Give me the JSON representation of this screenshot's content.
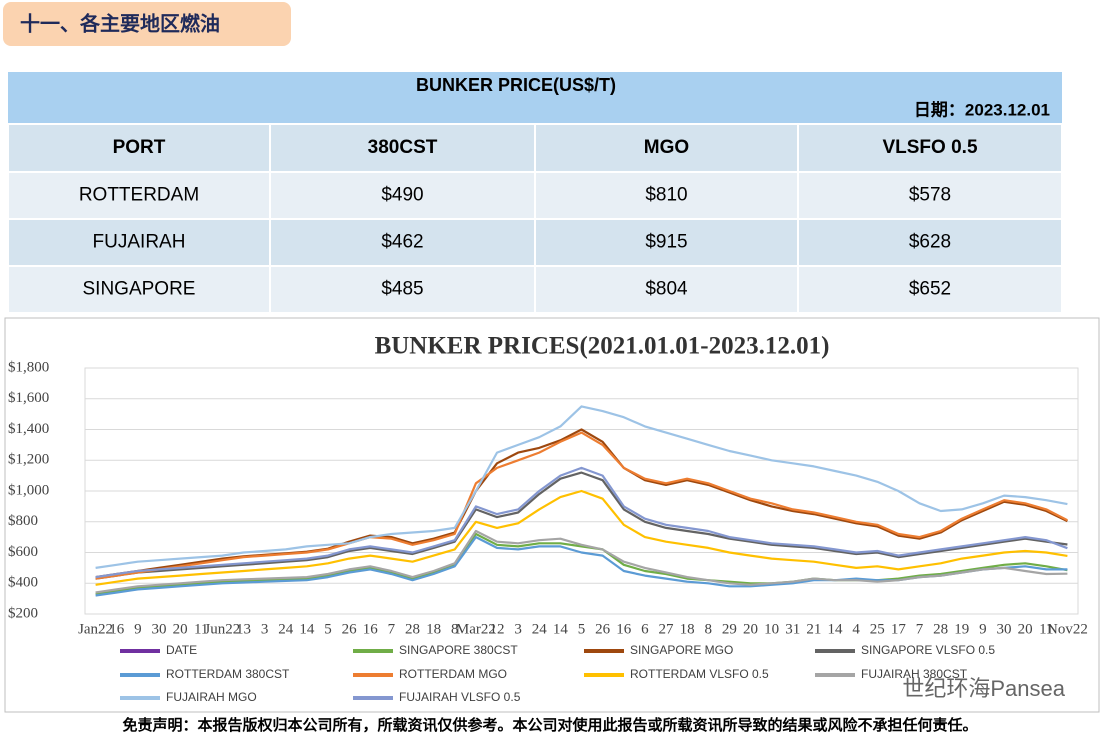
{
  "header": {
    "title": "十一、各主要地区燃油"
  },
  "table": {
    "title": "BUNKER PRICE(US$/T)",
    "date": "日期：2023.12.01",
    "columns": [
      "PORT",
      "380CST",
      "MGO",
      "VLSFO 0.5"
    ],
    "rows": [
      [
        "ROTTERDAM",
        "$490",
        "$810",
        "$578"
      ],
      [
        "FUJAIRAH",
        "$462",
        "$915",
        "$628"
      ],
      [
        "SINGAPORE",
        "$485",
        "$804",
        "$652"
      ]
    ]
  },
  "chart_data": {
    "type": "line",
    "title": "BUNKER PRICES(2021.01.01-2023.12.01)",
    "categories": [
      "Jan22",
      "16",
      "9",
      "30",
      "20",
      "11",
      "Jun22",
      "13",
      "3",
      "24",
      "14",
      "5",
      "26",
      "16",
      "7",
      "28",
      "18",
      "8",
      "Mar22",
      "12",
      "3",
      "24",
      "14",
      "5",
      "26",
      "16",
      "6",
      "27",
      "18",
      "8",
      "29",
      "20",
      "10",
      "31",
      "21",
      "14",
      "4",
      "25",
      "17",
      "7",
      "28",
      "19",
      "9",
      "30",
      "20",
      "11",
      "Nov22"
    ],
    "ylim": [
      200,
      1800
    ],
    "yticks": [
      {
        "value": 200,
        "label": "$200"
      },
      {
        "value": 400,
        "label": "$400"
      },
      {
        "value": 600,
        "label": "$600"
      },
      {
        "value": 800,
        "label": "$800"
      },
      {
        "value": 1000,
        "label": "$1,000"
      },
      {
        "value": 1200,
        "label": "$1,200"
      },
      {
        "value": 1400,
        "label": "$1,400"
      },
      {
        "value": 1600,
        "label": "$1,600"
      },
      {
        "value": 1800,
        "label": "$1,800"
      }
    ],
    "grid": true,
    "legend": "bottom",
    "series": [
      {
        "name": "DATE",
        "color": "#7030a0",
        "values": [
          null,
          null,
          null,
          null,
          null,
          null,
          null,
          null,
          null,
          null,
          null,
          null,
          null,
          null,
          null,
          null,
          null,
          null,
          null,
          null,
          null,
          null,
          null,
          null,
          null,
          null,
          null,
          null,
          null,
          null,
          null,
          null,
          null,
          null,
          null,
          null,
          null,
          null,
          null,
          null,
          null,
          null,
          null,
          null,
          null,
          null,
          null
        ]
      },
      {
        "name": "SINGAPORE 380CST",
        "color": "#70ad47",
        "values": [
          330,
          350,
          370,
          380,
          390,
          400,
          410,
          415,
          420,
          425,
          430,
          450,
          480,
          500,
          470,
          430,
          470,
          520,
          720,
          650,
          640,
          660,
          660,
          640,
          620,
          520,
          480,
          460,
          430,
          420,
          410,
          400,
          400,
          410,
          430,
          420,
          420,
          420,
          430,
          450,
          460,
          480,
          500,
          520,
          530,
          510,
          485
        ]
      },
      {
        "name": "SINGAPORE MGO",
        "color": "#9e480e",
        "values": [
          440,
          460,
          480,
          500,
          520,
          540,
          560,
          575,
          585,
          595,
          605,
          625,
          670,
          710,
          700,
          660,
          690,
          730,
          1000,
          1180,
          1250,
          1280,
          1330,
          1400,
          1320,
          1150,
          1070,
          1040,
          1070,
          1040,
          990,
          940,
          900,
          870,
          850,
          820,
          790,
          770,
          710,
          690,
          730,
          810,
          870,
          930,
          910,
          870,
          804
        ]
      },
      {
        "name": "SINGAPORE VLSFO 0.5",
        "color": "#636363",
        "values": [
          430,
          450,
          470,
          480,
          490,
          500,
          510,
          520,
          530,
          540,
          550,
          570,
          610,
          630,
          610,
          590,
          630,
          670,
          880,
          830,
          860,
          980,
          1080,
          1120,
          1070,
          880,
          800,
          760,
          740,
          720,
          690,
          670,
          650,
          640,
          630,
          610,
          590,
          600,
          570,
          590,
          610,
          630,
          650,
          670,
          690,
          670,
          652
        ]
      },
      {
        "name": "ROTTERDAM 380CST",
        "color": "#5b9bd5",
        "values": [
          320,
          340,
          360,
          370,
          380,
          390,
          400,
          405,
          410,
          415,
          420,
          440,
          470,
          490,
          460,
          420,
          460,
          510,
          700,
          630,
          620,
          640,
          640,
          600,
          580,
          480,
          450,
          430,
          410,
          400,
          380,
          380,
          390,
          400,
          420,
          420,
          430,
          420,
          420,
          440,
          450,
          470,
          490,
          500,
          510,
          490,
          490
        ]
      },
      {
        "name": "ROTTERDAM MGO",
        "color": "#ed7d31",
        "values": [
          430,
          450,
          470,
          490,
          510,
          530,
          550,
          570,
          580,
          590,
          600,
          620,
          660,
          700,
          690,
          650,
          680,
          720,
          1050,
          1150,
          1200,
          1250,
          1320,
          1380,
          1300,
          1150,
          1080,
          1050,
          1080,
          1050,
          1000,
          950,
          920,
          880,
          860,
          830,
          800,
          780,
          720,
          700,
          740,
          820,
          880,
          940,
          920,
          880,
          810
        ]
      },
      {
        "name": "ROTTERDAM VLSFO 0.5",
        "color": "#ffc000",
        "values": [
          390,
          410,
          430,
          440,
          450,
          460,
          470,
          480,
          490,
          500,
          510,
          530,
          560,
          580,
          560,
          540,
          580,
          620,
          800,
          760,
          790,
          880,
          960,
          1000,
          950,
          780,
          700,
          670,
          650,
          630,
          600,
          580,
          560,
          550,
          540,
          520,
          500,
          510,
          490,
          510,
          530,
          560,
          580,
          600,
          610,
          600,
          578
        ]
      },
      {
        "name": "FUJAIRAH 380CST",
        "color": "#a5a5a5",
        "values": [
          340,
          360,
          380,
          390,
          400,
          410,
          420,
          425,
          430,
          435,
          440,
          460,
          490,
          510,
          480,
          440,
          480,
          530,
          740,
          670,
          660,
          680,
          690,
          650,
          620,
          540,
          500,
          470,
          440,
          420,
          400,
          390,
          400,
          410,
          430,
          420,
          420,
          410,
          420,
          440,
          450,
          470,
          490,
          500,
          480,
          460,
          462
        ]
      },
      {
        "name": "FUJAIRAH MGO",
        "color": "#9dc3e6",
        "values": [
          500,
          520,
          540,
          550,
          560,
          570,
          580,
          600,
          610,
          620,
          640,
          650,
          660,
          700,
          720,
          730,
          740,
          760,
          1000,
          1250,
          1300,
          1350,
          1420,
          1550,
          1520,
          1480,
          1420,
          1380,
          1340,
          1300,
          1260,
          1230,
          1200,
          1180,
          1160,
          1130,
          1100,
          1060,
          1000,
          920,
          870,
          880,
          920,
          970,
          960,
          940,
          915
        ]
      },
      {
        "name": "FUJAIRAH VLSFO 0.5",
        "color": "#8497d0",
        "values": [
          440,
          460,
          480,
          490,
          500,
          510,
          520,
          530,
          540,
          550,
          560,
          580,
          620,
          640,
          620,
          600,
          640,
          680,
          900,
          850,
          880,
          1000,
          1100,
          1150,
          1100,
          900,
          820,
          780,
          760,
          740,
          700,
          680,
          660,
          650,
          640,
          620,
          600,
          610,
          580,
          600,
          620,
          640,
          660,
          680,
          700,
          680,
          628
        ]
      }
    ]
  },
  "watermark": "世纪环海Pansea",
  "footer": "免责声明：本报告版权归本公司所有，所载资讯仅供参考。本公司对使用此报告或所载资讯所导致的结果或风险不承担任何责任。"
}
